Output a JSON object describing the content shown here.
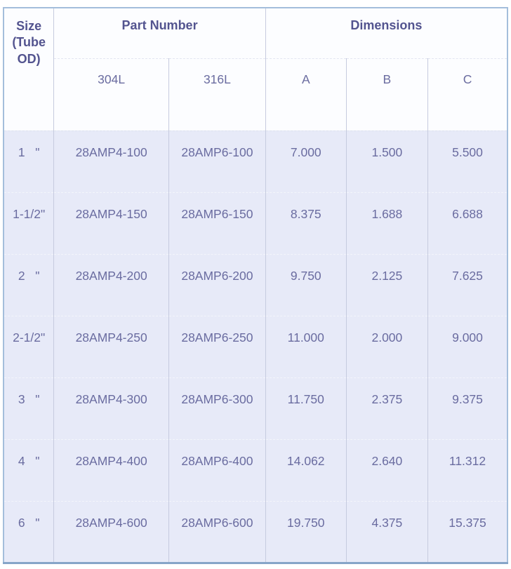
{
  "table": {
    "headers": {
      "size": "Size (Tube OD)",
      "part_number": "Part Number",
      "dimensions": "Dimensions",
      "sub_304l": "304L",
      "sub_316l": "316L",
      "sub_a": "A",
      "sub_b": "B",
      "sub_c": "C"
    },
    "rows": [
      {
        "size": "1   \"",
        "pn304l": "28AMP4-100",
        "pn316l": "28AMP6-100",
        "a": "7.000",
        "b": "1.500",
        "c": "5.500"
      },
      {
        "size": "1-1/2\"",
        "pn304l": "28AMP4-150",
        "pn316l": "28AMP6-150",
        "a": "8.375",
        "b": "1.688",
        "c": "6.688"
      },
      {
        "size": "2   \"",
        "pn304l": "28AMP4-200",
        "pn316l": "28AMP6-200",
        "a": "9.750",
        "b": "2.125",
        "c": "7.625"
      },
      {
        "size": "2-1/2\"",
        "pn304l": "28AMP4-250",
        "pn316l": "28AMP6-250",
        "a": "11.000",
        "b": "2.000",
        "c": "9.000"
      },
      {
        "size": "3   \"",
        "pn304l": "28AMP4-300",
        "pn316l": "28AMP6-300",
        "a": "11.750",
        "b": "2.375",
        "c": "9.375"
      },
      {
        "size": "4   \"",
        "pn304l": "28AMP4-400",
        "pn316l": "28AMP6-400",
        "a": "14.062",
        "b": "2.640",
        "c": "11.312"
      },
      {
        "size": "6   \"",
        "pn304l": "28AMP4-600",
        "pn316l": "28AMP6-600",
        "a": "19.750",
        "b": "4.375",
        "c": "15.375"
      }
    ],
    "colors": {
      "outer_border": "#a4bedb",
      "outer_border_bottom": "#86a5c8",
      "header_background": "#fcfdff",
      "row_background": "#e7eaf8",
      "column_separator": "#c6cbdf",
      "header_text": "#53548f",
      "body_text": "#6a6ca0"
    }
  }
}
